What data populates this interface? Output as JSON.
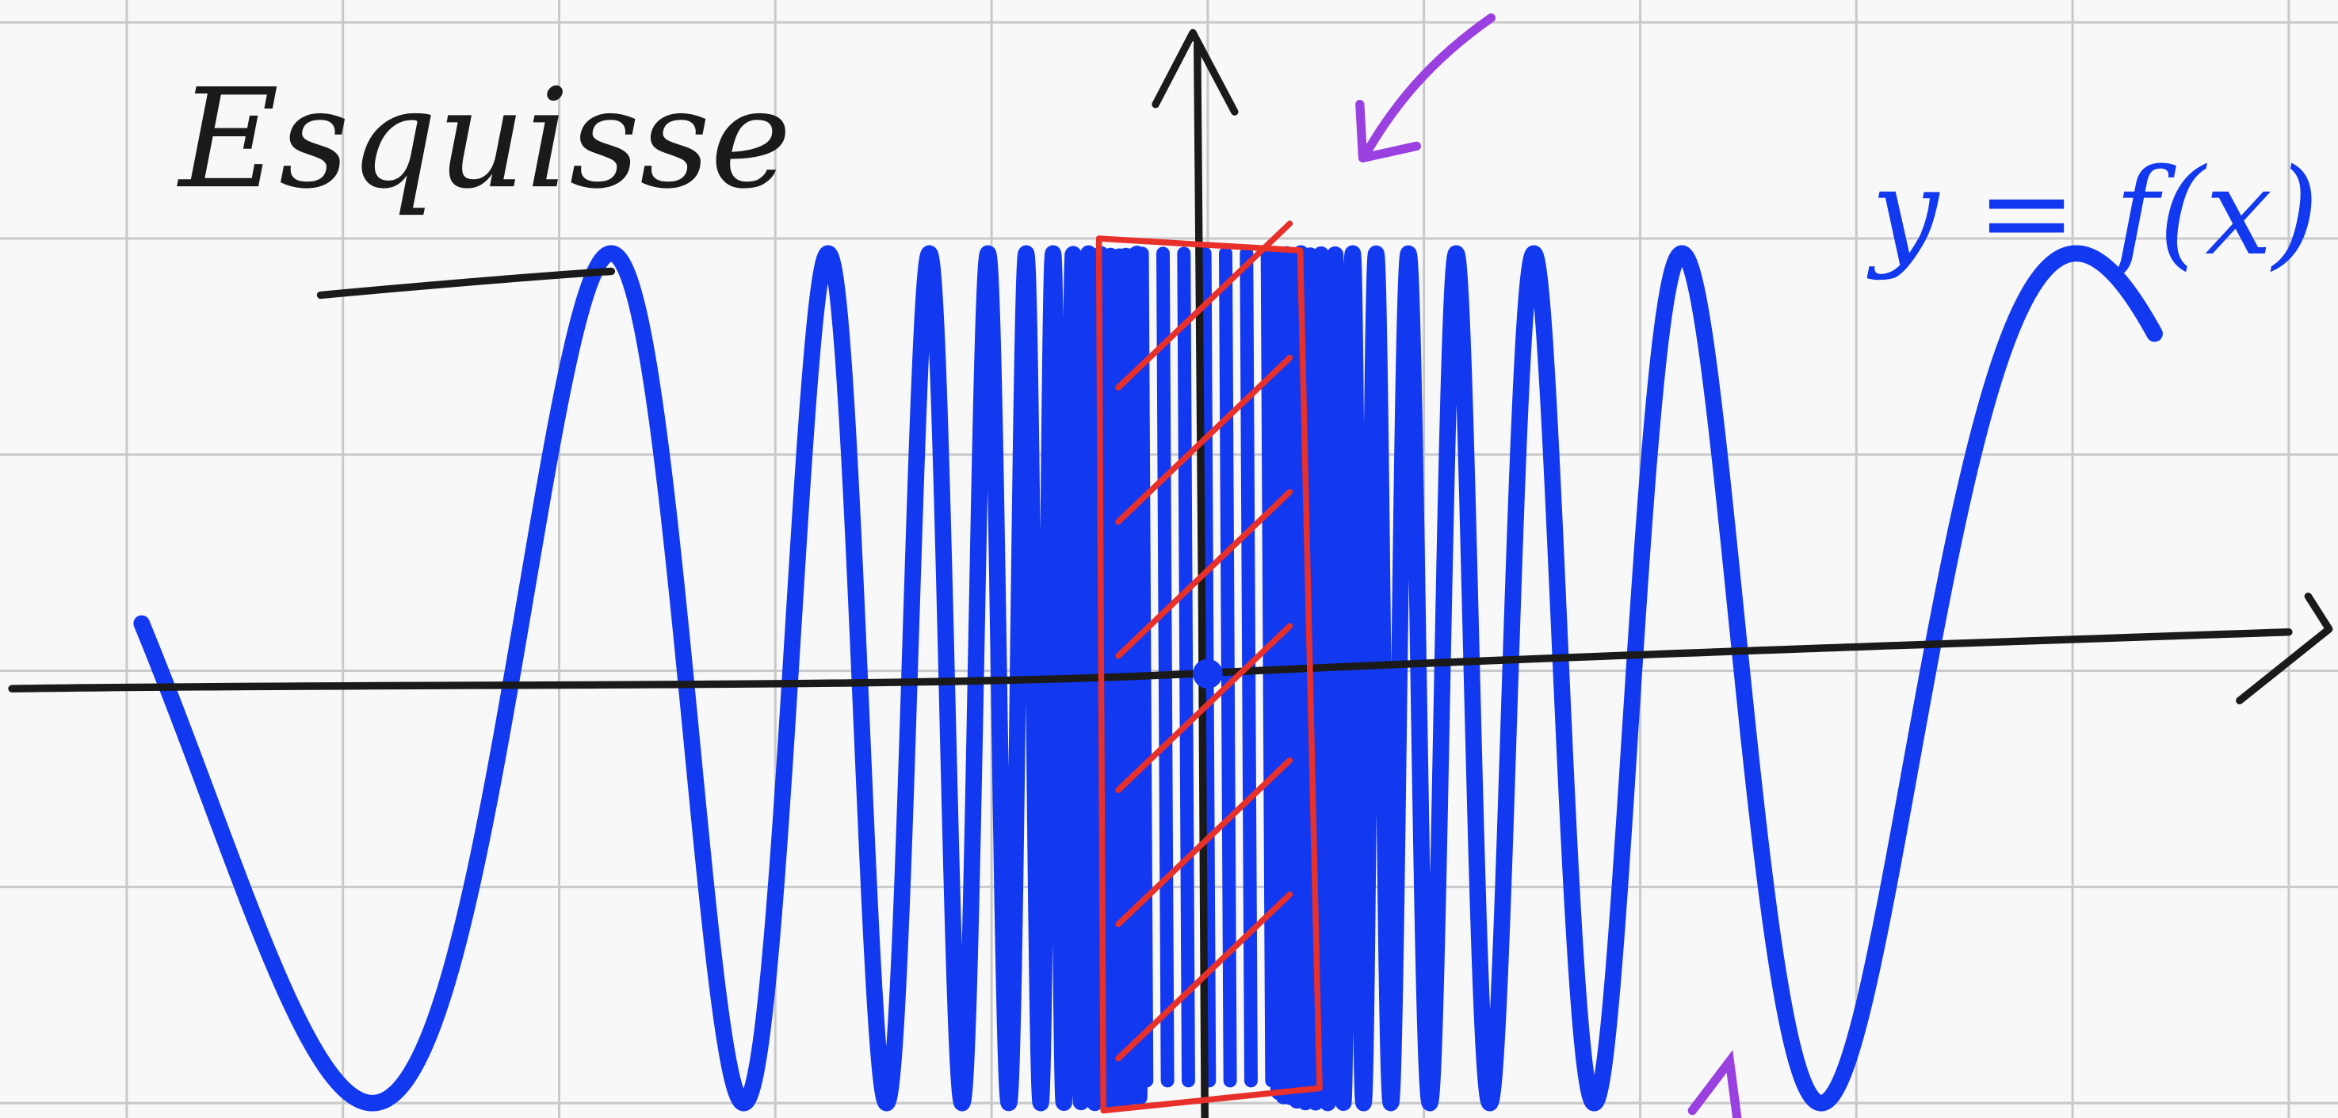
{
  "title": "Esquisse",
  "label": "y = f(x)"
}
